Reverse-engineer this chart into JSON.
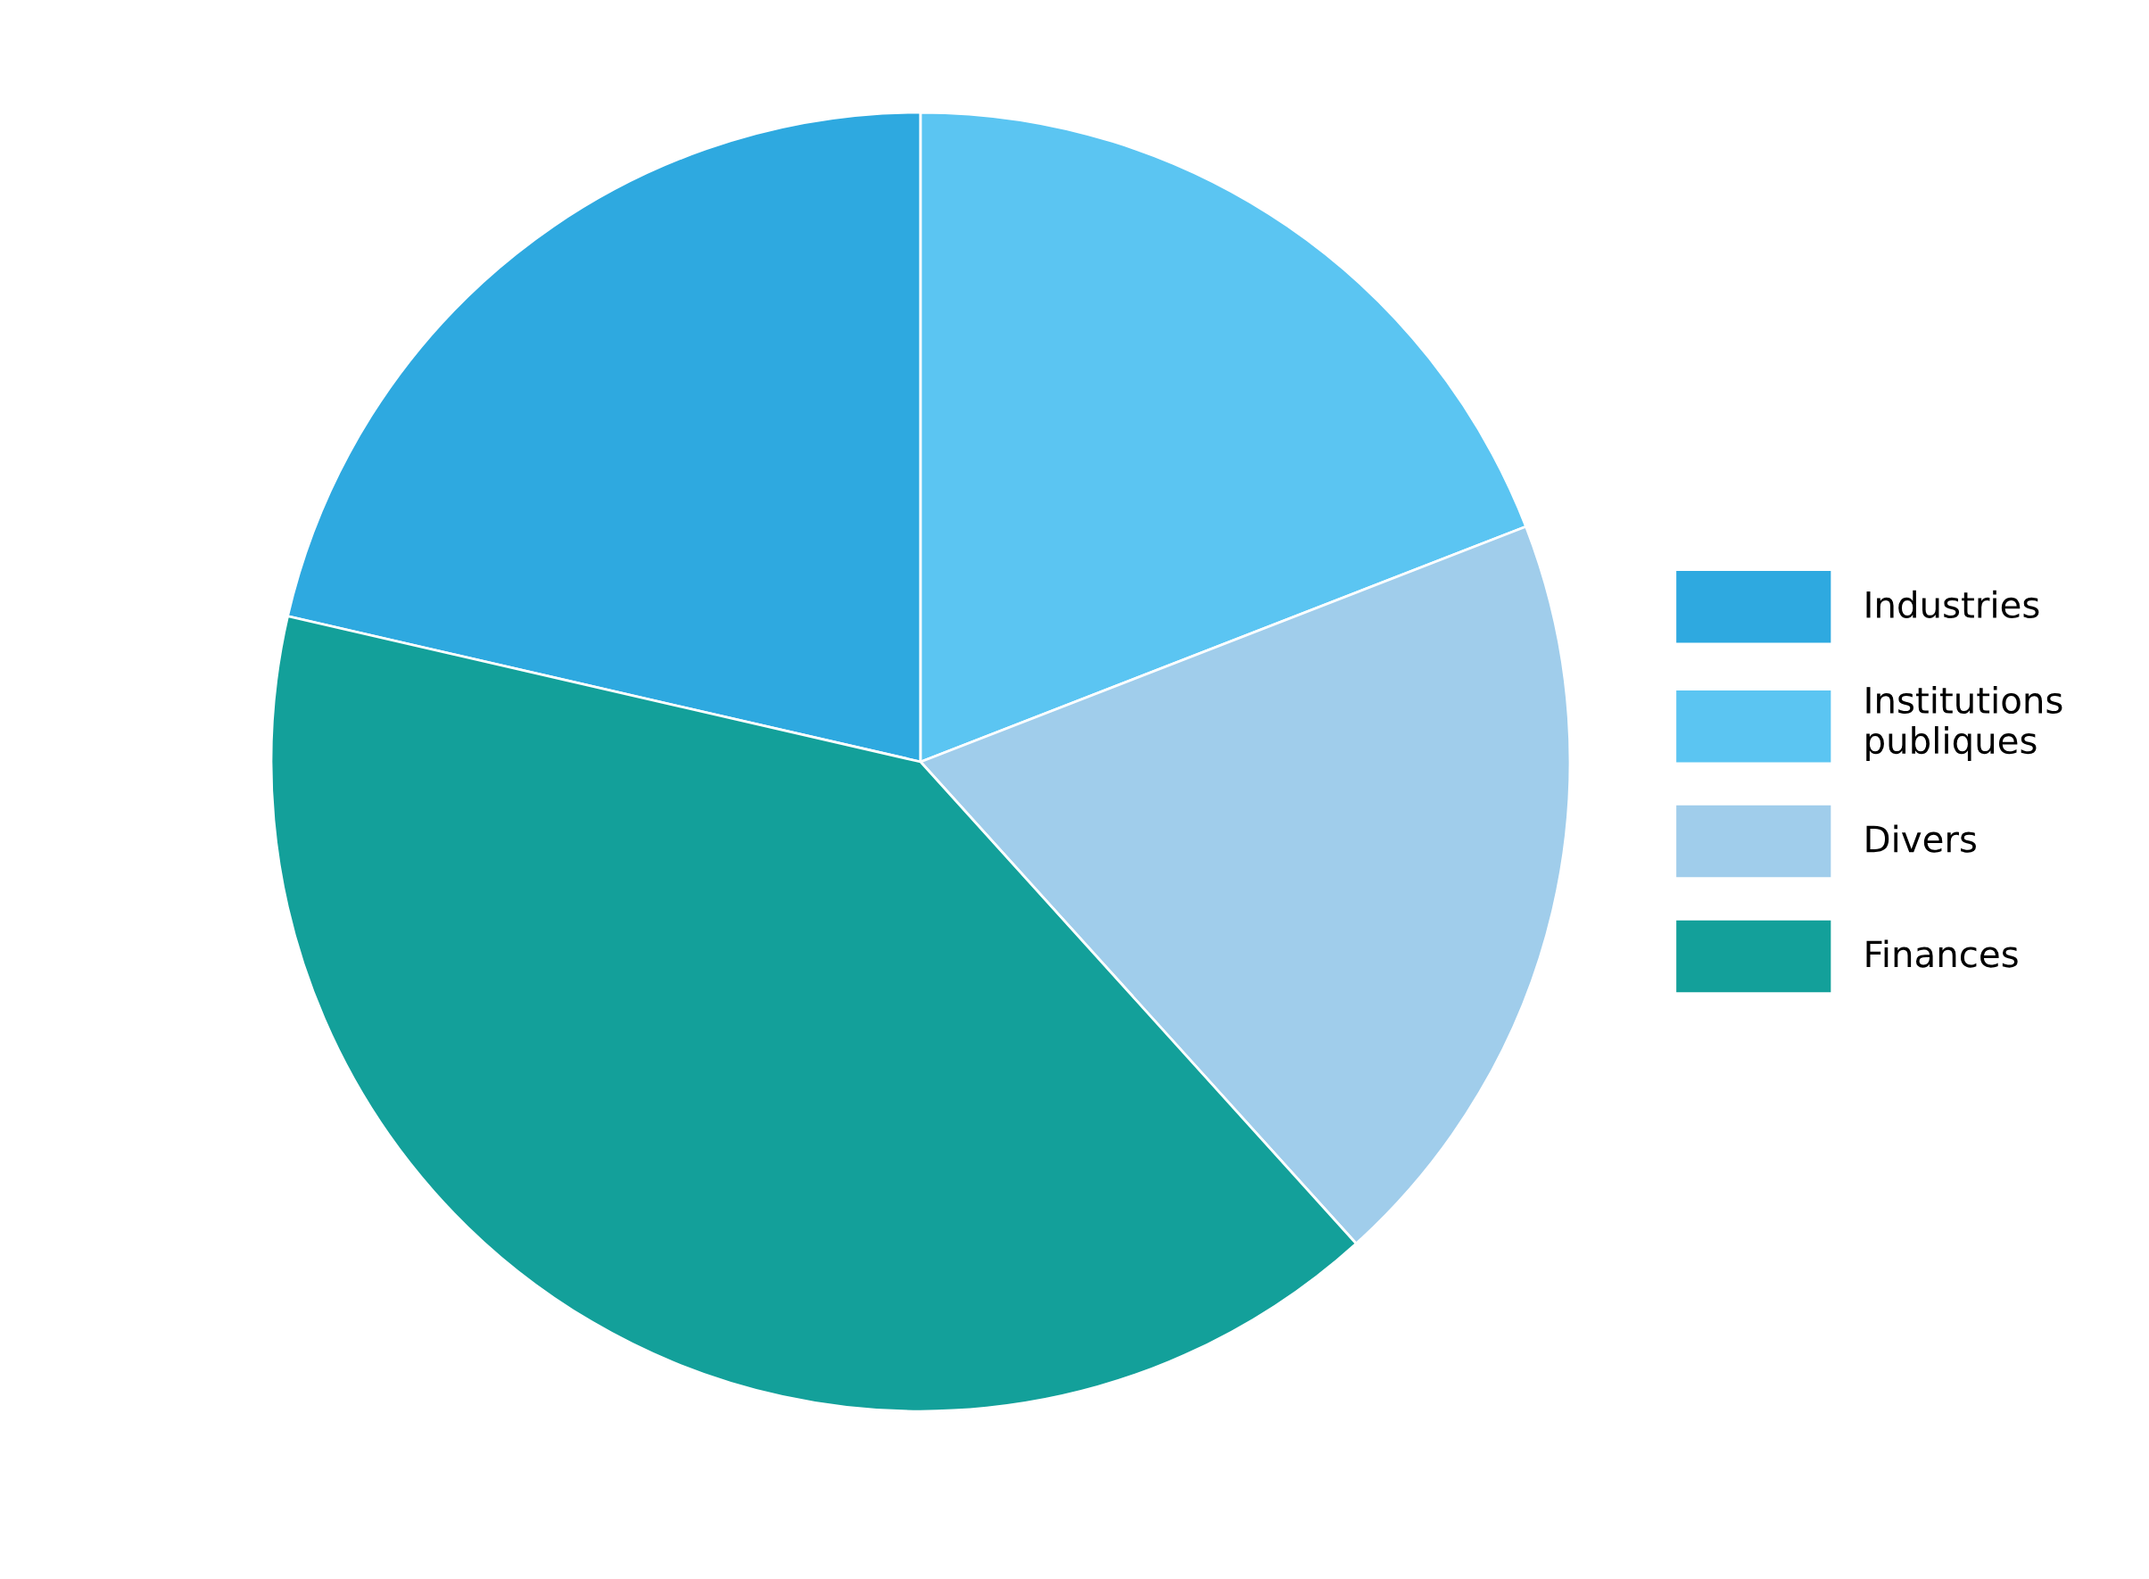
{
  "chart_data": {
    "type": "pie",
    "categories": [
      "Industries",
      "Institutions publiques",
      "Divers",
      "Finances"
    ],
    "values": [
      21.4,
      19.1,
      19.2,
      40.3
    ],
    "colors": [
      "#2ea9e0",
      "#5bc5f2",
      "#a0cdeb",
      "#13a09a"
    ],
    "legend": "right"
  }
}
